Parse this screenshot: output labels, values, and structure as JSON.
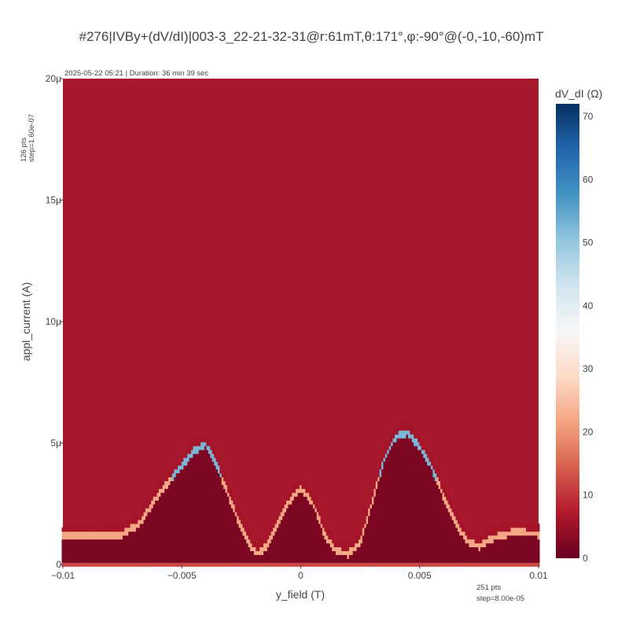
{
  "chart_data": {
    "type": "heatmap",
    "title": "#276|IVBy+(dV/dI)|003-3_22-21-32-31@r:61mT,θ:171°,φ:-90°@(-0,-10,-60)mT",
    "subtitle": "2025-05-22 05:21 | Duration: 36 min 39 sec",
    "xlabel": "y_field (T)",
    "ylabel": "appl_current (A)",
    "colorbar_title": "dV_dI (Ω)",
    "xlim": [
      -0.01,
      0.01
    ],
    "ylim": [
      0,
      2e-05
    ],
    "zlim": [
      0,
      72
    ],
    "x_ticks": [
      {
        "value": -0.01,
        "label": "−0.01"
      },
      {
        "value": -0.005,
        "label": "−0.005"
      },
      {
        "value": 0,
        "label": "0"
      },
      {
        "value": 0.005,
        "label": "0.005"
      },
      {
        "value": 0.01,
        "label": "0.01"
      }
    ],
    "y_ticks": [
      {
        "value": 0,
        "label": "0"
      },
      {
        "value": 5e-06,
        "label": "5μ"
      },
      {
        "value": 1e-05,
        "label": "10μ"
      },
      {
        "value": 1.5e-05,
        "label": "15μ"
      },
      {
        "value": 2e-05,
        "label": "20μ"
      }
    ],
    "colorbar_ticks": [
      {
        "value": 0,
        "label": "0"
      },
      {
        "value": 10,
        "label": "10"
      },
      {
        "value": 20,
        "label": "20"
      },
      {
        "value": 30,
        "label": "30"
      },
      {
        "value": 40,
        "label": "40"
      },
      {
        "value": 50,
        "label": "50"
      },
      {
        "value": 60,
        "label": "60"
      },
      {
        "value": 70,
        "label": "70"
      }
    ],
    "colorscale": "RdBu",
    "colorscale_stops": [
      "#67001f",
      "#b2182b",
      "#d6604d",
      "#f4a582",
      "#fddbc7",
      "#f7f7f7",
      "#d1e5f0",
      "#92c5de",
      "#4393c3",
      "#2166ac",
      "#053061"
    ],
    "x_points_note": "251 pts",
    "x_step_note": "step=8.00e-05",
    "y_points_note": "126 pts",
    "y_step_note": "step=1.60e-07",
    "x_points": 251,
    "x_step": 8e-05,
    "y_points": 126,
    "y_step": 1.6e-07,
    "background_level": 6,
    "superconducting_level": 2,
    "transition_level": 22,
    "peak_level": 70,
    "critical_current_curve": {
      "x": [
        -0.01,
        -0.0085,
        -0.0075,
        -0.0068,
        -0.006,
        -0.005,
        -0.0045,
        -0.004,
        -0.0035,
        -0.003,
        -0.0025,
        -0.0021,
        -0.0018,
        -0.0014,
        -0.001,
        -0.0005,
        0,
        0.0005,
        0.0008,
        0.001,
        0.0015,
        0.002,
        0.0025,
        0.003,
        0.0035,
        0.004,
        0.0045,
        0.005,
        0.0055,
        0.006,
        0.0065,
        0.007,
        0.0075,
        0.008,
        0.009,
        0.01
      ],
      "y": [
        1.1e-06,
        1.1e-06,
        1.2e-06,
        1.6e-06,
        2.8e-06,
        4e-06,
        4.6e-06,
        4.9e-06,
        4e-06,
        2.7e-06,
        1.5e-06,
        7e-07,
        4e-07,
        7e-07,
        1.5e-06,
        2.5e-06,
        3.1e-06,
        2.5e-06,
        1.8e-06,
        1.2e-06,
        5e-07,
        4e-07,
        8e-07,
        2.5e-06,
        4.2e-06,
        5.2e-06,
        5.4e-06,
        4.8e-06,
        4e-06,
        2.8e-06,
        1.7e-06,
        9e-07,
        7e-07,
        1e-06,
        1.3e-06,
        1.2e-06
      ]
    }
  }
}
